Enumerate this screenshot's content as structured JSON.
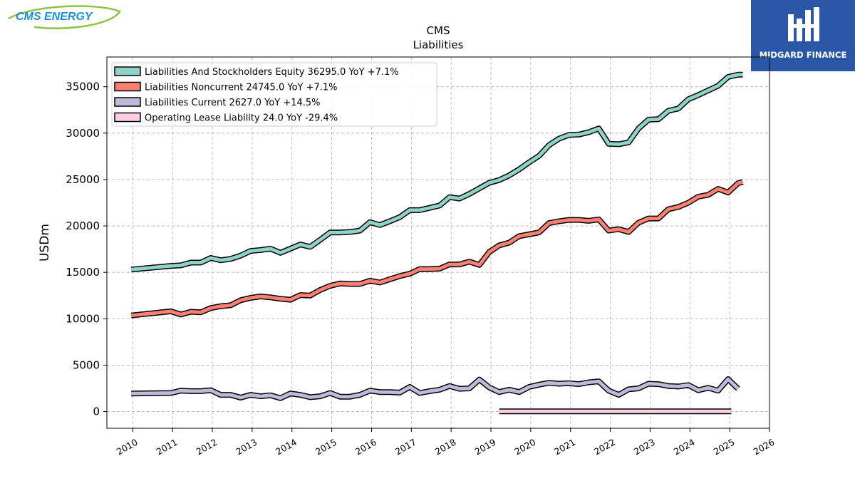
{
  "brand": {
    "left_logo_text": "CMS ENERGY",
    "right_logo_text": "MIDGARD FINANCE",
    "left_logo_color": "#1a8fd6",
    "left_swoosh_color": "#8cc63f",
    "right_logo_bg": "#2a56a8"
  },
  "chart_data": {
    "type": "line",
    "title": "CMS",
    "subtitle": "Liabilities",
    "ylabel": "USDm",
    "xlabel": "",
    "xlim": [
      2009.35,
      2026.0
    ],
    "ylim": [
      -1800,
      38200
    ],
    "xticks": [
      2010,
      2011,
      2012,
      2013,
      2014,
      2015,
      2016,
      2017,
      2018,
      2019,
      2020,
      2021,
      2022,
      2023,
      2024,
      2025,
      2026
    ],
    "yticks": [
      0,
      5000,
      10000,
      15000,
      20000,
      25000,
      30000,
      35000
    ],
    "grid": true,
    "legend_position": "top-left",
    "series": [
      {
        "name": "Liabilities And Stockholders Equity",
        "legend": "Liabilities And Stockholders Equity  36295.0 YoY +7.1%",
        "color": "#8dd3c7",
        "x": [
          2009.96,
          2010.96,
          2011.21,
          2011.46,
          2011.71,
          2011.96,
          2012.21,
          2012.46,
          2012.71,
          2012.96,
          2013.21,
          2013.46,
          2013.71,
          2013.96,
          2014.21,
          2014.46,
          2014.71,
          2014.96,
          2015.21,
          2015.46,
          2015.71,
          2015.96,
          2016.21,
          2016.46,
          2016.71,
          2016.96,
          2017.21,
          2017.46,
          2017.71,
          2017.96,
          2018.21,
          2018.46,
          2018.71,
          2018.96,
          2019.21,
          2019.46,
          2019.71,
          2019.96,
          2020.21,
          2020.46,
          2020.71,
          2020.96,
          2021.21,
          2021.46,
          2021.71,
          2021.96,
          2022.21,
          2022.46,
          2022.71,
          2022.96,
          2023.21,
          2023.46,
          2023.71,
          2023.96,
          2024.21,
          2024.46,
          2024.71,
          2024.96,
          2025.21,
          2025.33
        ],
        "values": [
          15300,
          15700,
          15750,
          16050,
          16050,
          16550,
          16300,
          16450,
          16800,
          17300,
          17400,
          17550,
          17100,
          17550,
          18000,
          17750,
          18500,
          19300,
          19300,
          19350,
          19500,
          20400,
          20100,
          20500,
          20950,
          21700,
          21700,
          21950,
          22200,
          23100,
          22950,
          23450,
          24050,
          24650,
          24950,
          25450,
          26100,
          26850,
          27550,
          28700,
          29400,
          29800,
          29850,
          30100,
          30500,
          28850,
          28800,
          29000,
          30500,
          31450,
          31500,
          32400,
          32650,
          33650,
          34100,
          34600,
          35100,
          36050,
          36295,
          36295
        ]
      },
      {
        "name": "Liabilities Noncurrent",
        "legend": "Liabilities Noncurrent  24745.0 YoY +7.1%",
        "color": "#fb8072",
        "x": [
          2009.96,
          2010.96,
          2011.21,
          2011.46,
          2011.71,
          2011.96,
          2012.21,
          2012.46,
          2012.71,
          2012.96,
          2013.21,
          2013.46,
          2013.71,
          2013.96,
          2014.21,
          2014.46,
          2014.71,
          2014.96,
          2015.21,
          2015.46,
          2015.71,
          2015.96,
          2016.21,
          2016.46,
          2016.71,
          2016.96,
          2017.21,
          2017.46,
          2017.71,
          2017.96,
          2018.21,
          2018.46,
          2018.71,
          2018.96,
          2019.21,
          2019.46,
          2019.71,
          2019.96,
          2020.21,
          2020.46,
          2020.71,
          2020.96,
          2021.21,
          2021.46,
          2021.71,
          2021.96,
          2022.21,
          2022.46,
          2022.71,
          2022.96,
          2023.21,
          2023.46,
          2023.71,
          2023.96,
          2024.21,
          2024.46,
          2024.71,
          2024.96,
          2025.21,
          2025.33
        ],
        "values": [
          10350,
          10800,
          10450,
          10750,
          10700,
          11150,
          11350,
          11450,
          12000,
          12250,
          12400,
          12300,
          12150,
          12050,
          12550,
          12500,
          13100,
          13550,
          13800,
          13750,
          13750,
          14100,
          13900,
          14250,
          14600,
          14850,
          15350,
          15350,
          15400,
          15850,
          15850,
          16150,
          15800,
          17200,
          17900,
          18200,
          18900,
          19100,
          19300,
          20300,
          20500,
          20650,
          20650,
          20550,
          20700,
          19500,
          19650,
          19350,
          20350,
          20800,
          20800,
          21800,
          22050,
          22500,
          23150,
          23350,
          24000,
          23600,
          24600,
          24745
        ]
      },
      {
        "name": "Liabilities Current",
        "legend": "Liabilities Current  2627.0 YoY +14.5%",
        "color": "#bebada",
        "x": [
          2009.96,
          2010.96,
          2011.21,
          2011.46,
          2011.71,
          2011.96,
          2012.21,
          2012.46,
          2012.71,
          2012.96,
          2013.21,
          2013.46,
          2013.71,
          2013.96,
          2014.21,
          2014.46,
          2014.71,
          2014.96,
          2015.21,
          2015.46,
          2015.71,
          2015.96,
          2016.21,
          2016.46,
          2016.71,
          2016.96,
          2017.21,
          2017.46,
          2017.71,
          2017.96,
          2018.21,
          2018.46,
          2018.71,
          2018.96,
          2019.21,
          2019.46,
          2019.71,
          2019.96,
          2020.21,
          2020.46,
          2020.71,
          2020.96,
          2021.21,
          2021.46,
          2021.71,
          2021.96,
          2022.21,
          2022.46,
          2022.71,
          2022.96,
          2023.21,
          2023.46,
          2023.71,
          2023.96,
          2024.21,
          2024.46,
          2024.71,
          2024.96,
          2025.21
        ],
        "values": [
          1950,
          2000,
          2250,
          2200,
          2200,
          2300,
          1800,
          1800,
          1500,
          1800,
          1650,
          1750,
          1450,
          1950,
          1800,
          1550,
          1650,
          2000,
          1600,
          1600,
          1800,
          2250,
          2100,
          2100,
          2050,
          2650,
          2000,
          2200,
          2350,
          2750,
          2450,
          2500,
          3450,
          2600,
          2100,
          2350,
          2100,
          2650,
          2900,
          3100,
          3000,
          3050,
          2950,
          3150,
          3250,
          2250,
          1800,
          2400,
          2500,
          3000,
          2950,
          2750,
          2700,
          2850,
          2300,
          2550,
          2250,
          3500,
          2450
        ]
      },
      {
        "name": "Operating Lease Liability",
        "legend": "Operating Lease Liability  24.0 YoY -29.4%",
        "color": "#fccde5",
        "x": [
          2019.21,
          2025.04
        ],
        "values": [
          24,
          24
        ]
      }
    ]
  }
}
